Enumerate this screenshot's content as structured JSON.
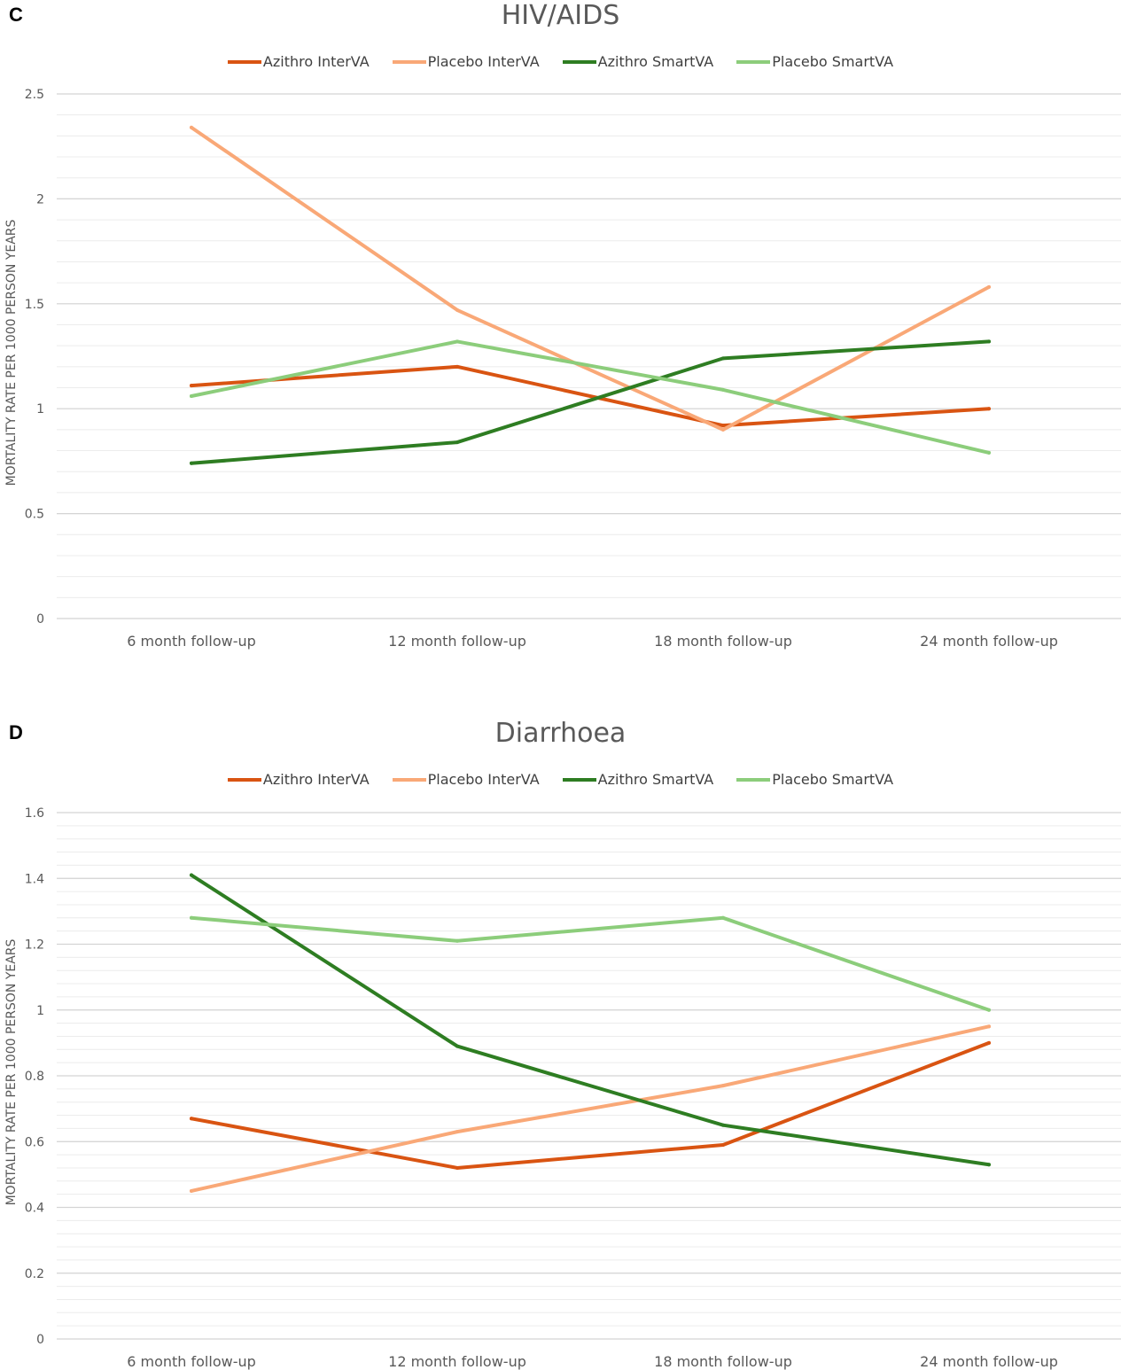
{
  "chart_data": [
    {
      "panel_letter": "C",
      "type": "line",
      "title": "HIV/AIDS",
      "ylabel": "MORTALITY RATE PER 1000 PERSON YEARS",
      "xlabel": "",
      "categories": [
        "6 month follow-up",
        "12 month follow-up",
        "18 month follow-up",
        "24 month follow-up"
      ],
      "ylim": [
        0,
        2.5
      ],
      "yticks": [
        0,
        0.5,
        1,
        1.5,
        2,
        2.5
      ],
      "ytick_labels": [
        "0",
        "0.5",
        "1",
        "1.5",
        "2",
        "2.5"
      ],
      "minor_grid_step": 0.1,
      "grid": true,
      "legend_position": "top",
      "series": [
        {
          "name": "Azithro InterVA",
          "color": "#d95412",
          "values": [
            1.11,
            1.2,
            0.92,
            1.0
          ]
        },
        {
          "name": "Placebo InterVA",
          "color": "#f9a877",
          "values": [
            2.34,
            1.47,
            0.9,
            1.58
          ]
        },
        {
          "name": "Azithro SmartVA",
          "color": "#2e7d22",
          "values": [
            0.74,
            0.84,
            1.24,
            1.32
          ]
        },
        {
          "name": "Placebo SmartVA",
          "color": "#8ccd7b",
          "values": [
            1.06,
            1.32,
            1.09,
            0.79
          ]
        }
      ]
    },
    {
      "panel_letter": "D",
      "type": "line",
      "title": "Diarrhoea",
      "ylabel": "MORTALITY RATE PER 1000 PERSON YEARS",
      "xlabel": "",
      "categories": [
        "6 month follow-up",
        "12 month follow-up",
        "18 month follow-up",
        "24 month follow-up"
      ],
      "ylim": [
        0,
        1.6
      ],
      "yticks": [
        0,
        0.2,
        0.4,
        0.6,
        0.8,
        1,
        1.2,
        1.4,
        1.6
      ],
      "ytick_labels": [
        "0",
        "0.2",
        "0.4",
        "0.6",
        "0.8",
        "1",
        "1.2",
        "1.4",
        "1.6"
      ],
      "minor_grid_step": 0.04,
      "grid": true,
      "legend_position": "top",
      "series": [
        {
          "name": "Azithro InterVA",
          "color": "#d95412",
          "values": [
            0.67,
            0.52,
            0.59,
            0.9
          ]
        },
        {
          "name": "Placebo InterVA",
          "color": "#f9a877",
          "values": [
            0.45,
            0.63,
            0.77,
            0.95
          ]
        },
        {
          "name": "Azithro SmartVA",
          "color": "#2e7d22",
          "values": [
            1.41,
            0.89,
            0.65,
            0.53
          ]
        },
        {
          "name": "Placebo SmartVA",
          "color": "#8ccd7b",
          "values": [
            1.28,
            1.21,
            1.28,
            1.0
          ]
        }
      ]
    }
  ]
}
